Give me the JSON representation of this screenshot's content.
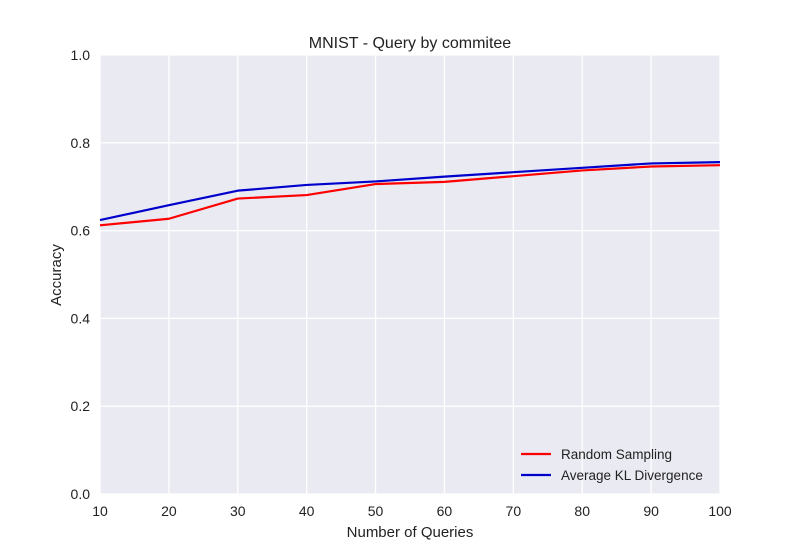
{
  "chart_data": {
    "type": "line",
    "title": "MNIST - Query by commitee",
    "xlabel": "Number of Queries",
    "ylabel": "Accuracy",
    "xlim": [
      10,
      100
    ],
    "ylim": [
      0.0,
      1.0
    ],
    "x_ticks": [
      10,
      20,
      30,
      40,
      50,
      60,
      70,
      80,
      90,
      100
    ],
    "y_ticks": [
      "0.0",
      "0.2",
      "0.4",
      "0.6",
      "0.8",
      "1.0"
    ],
    "grid": true,
    "legend_position": "bottom-right",
    "x": [
      10,
      20,
      30,
      40,
      50,
      60,
      70,
      80,
      90,
      100
    ],
    "series": [
      {
        "name": "Random Sampling",
        "color": "#ff0000",
        "values": [
          0.612,
          0.627,
          0.673,
          0.681,
          0.706,
          0.711,
          0.724,
          0.737,
          0.746,
          0.749
        ]
      },
      {
        "name": "Average KL Divergence",
        "color": "#0000cc",
        "values": [
          0.624,
          0.658,
          0.691,
          0.704,
          0.712,
          0.723,
          0.733,
          0.743,
          0.753,
          0.756
        ]
      }
    ],
    "background_color": "#eaeaf2"
  }
}
